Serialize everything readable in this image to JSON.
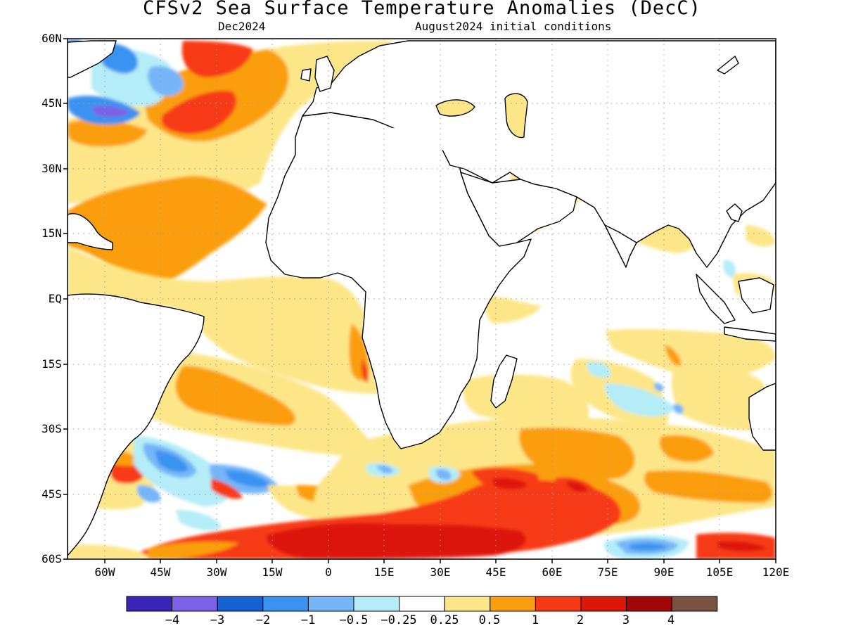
{
  "title": "CFSv2 Sea Surface Temperature Anomalies (DecC)",
  "subtitle_left": "Dec2024",
  "subtitle_right": "August2024 initial conditions",
  "map": {
    "projection": "equirectangular",
    "lon_range": [
      -70,
      120
    ],
    "lat_range": [
      -60,
      60
    ],
    "grid": "dotted",
    "lat_labels": [
      "60N",
      "45N",
      "30N",
      "15N",
      "EQ",
      "15S",
      "30S",
      "45S",
      "60S"
    ],
    "lon_labels": [
      "60W",
      "45W",
      "30W",
      "15W",
      "0",
      "15E",
      "30E",
      "45E",
      "60E",
      "75E",
      "90E",
      "105E",
      "120E"
    ],
    "land_fill": "#ffffff",
    "coast_color": "#000000"
  },
  "colorbar": {
    "colors": [
      "#3a24b8",
      "#7b62e6",
      "#1462cf",
      "#3a93f1",
      "#76b6f8",
      "#b4ecf7",
      "#ffffff",
      "#fde687",
      "#fb9e10",
      "#f73a16",
      "#dd1708",
      "#a30606",
      "#7a5242"
    ],
    "labels": [
      "−4",
      "−3",
      "−2",
      "−1",
      "−0.5",
      "−0.25",
      "0.25",
      "0.5",
      "1",
      "2",
      "3",
      "4"
    ]
  },
  "anomaly_regions": [
    {
      "name": "north-atlantic-warm",
      "color": "#fb9e10",
      "level": "1"
    },
    {
      "name": "labrador-sea-cold",
      "color": "#3a93f1",
      "level": "-1"
    },
    {
      "name": "gulf-stream-strong-cold",
      "color": "#7b62e6",
      "level": "-3"
    },
    {
      "name": "southern-ocean-warm-band",
      "color": "#f73a16",
      "level": "2"
    },
    {
      "name": "southern-ocean-core",
      "color": "#dd1708",
      "level": "3"
    },
    {
      "name": "tropical-atlantic-warm",
      "color": "#fde687",
      "level": "0.5"
    },
    {
      "name": "south-indian-cold-patches",
      "color": "#b4ecf7",
      "level": "-0.25"
    }
  ]
}
